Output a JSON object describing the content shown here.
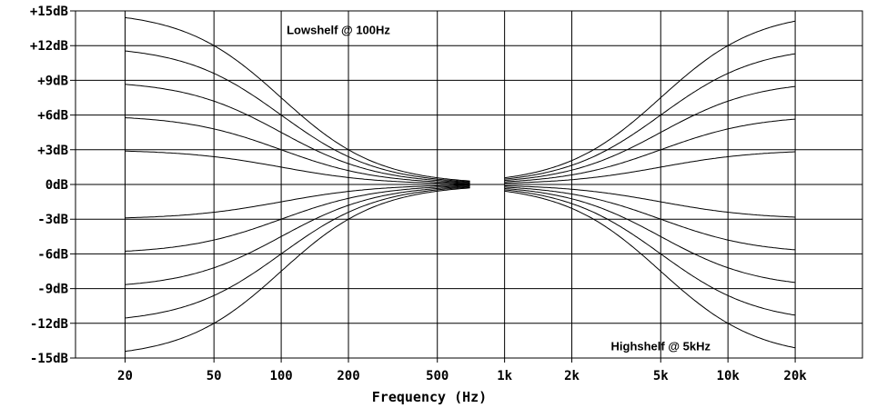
{
  "chart_data": {
    "type": "line",
    "xlabel": "Frequency (Hz)",
    "ylabel": "",
    "x_scale": "log",
    "xlim": [
      12,
      40000
    ],
    "ylim": [
      -15,
      15
    ],
    "grid": true,
    "x_ticks": [
      {
        "value": 20,
        "label": "20"
      },
      {
        "value": 50,
        "label": "50"
      },
      {
        "value": 100,
        "label": "100"
      },
      {
        "value": 200,
        "label": "200"
      },
      {
        "value": 500,
        "label": "500"
      },
      {
        "value": 1000,
        "label": "1k"
      },
      {
        "value": 2000,
        "label": "2k"
      },
      {
        "value": 5000,
        "label": "5k"
      },
      {
        "value": 10000,
        "label": "10k"
      },
      {
        "value": 20000,
        "label": "20k"
      }
    ],
    "y_ticks": [
      {
        "value": 15,
        "label": "+15dB"
      },
      {
        "value": 12,
        "label": "+12dB"
      },
      {
        "value": 9,
        "label": "+9dB"
      },
      {
        "value": 6,
        "label": "+6dB"
      },
      {
        "value": 3,
        "label": "+3dB"
      },
      {
        "value": 0,
        "label": "0dB"
      },
      {
        "value": -3,
        "label": "-3dB"
      },
      {
        "value": -6,
        "label": "-6dB"
      },
      {
        "value": -9,
        "label": "-9dB"
      },
      {
        "value": -12,
        "label": "-12dB"
      },
      {
        "value": -15,
        "label": "-15dB"
      }
    ],
    "annotations": [
      {
        "text": "Lowshelf   @ 100Hz",
        "x": 100,
        "y": 13.3
      },
      {
        "text": "Highshelf   @ 5kHz",
        "x": 5000,
        "y": -14
      }
    ],
    "lowshelf": {
      "corner_hz": 100,
      "gains_db": [
        15,
        12,
        9,
        6,
        3,
        -3,
        -6,
        -9,
        -12,
        -15
      ],
      "freq_range": [
        20,
        700
      ]
    },
    "highshelf": {
      "corner_hz": 5000,
      "gains_db": [
        15,
        12,
        9,
        6,
        3,
        -3,
        -6,
        -9,
        -12,
        -15
      ],
      "freq_range": [
        1000,
        20000
      ]
    }
  }
}
